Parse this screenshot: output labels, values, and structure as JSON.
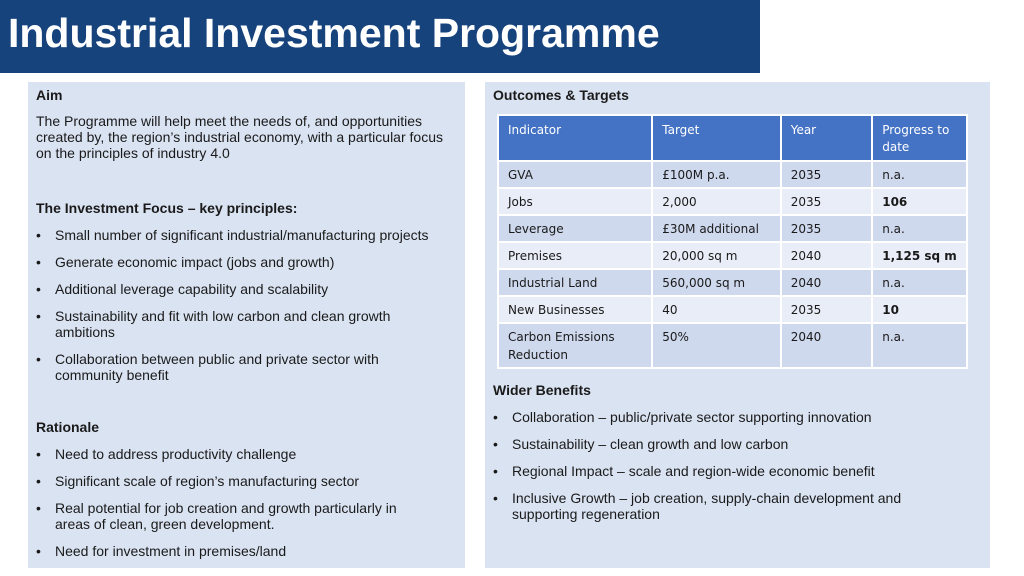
{
  "title": "Industrial Investment Programme",
  "left": {
    "aim_heading": "Aim",
    "aim_text": "The Programme will help meet the needs of, and opportunities created by, the region’s industrial economy, with a particular focus on the principles of industry 4.0",
    "focus_heading": "The Investment Focus – key principles:",
    "focus_items": [
      "Small number of significant industrial/manufacturing projects",
      "Generate economic impact (jobs and growth)",
      "Additional leverage capability and scalability",
      "Sustainability and fit with low carbon and clean growth ambitions",
      "Collaboration between public and private sector with community benefit"
    ],
    "rationale_heading": "Rationale",
    "rationale_items": [
      "Need to address productivity challenge",
      "Significant scale of region’s manufacturing sector",
      "Real potential for job creation and growth particularly in areas of clean, green development.",
      "Need for investment in premises/land"
    ]
  },
  "right": {
    "outcomes_heading": "Outcomes & Targets",
    "table": {
      "headers": [
        "Indicator",
        "Target",
        "Year",
        "Progress to date"
      ],
      "rows": [
        {
          "indicator": "GVA",
          "target": "£100M p.a.",
          "year": "2035",
          "progress": "n.a.",
          "progress_bold": false
        },
        {
          "indicator": "Jobs",
          "target": "2,000",
          "year": "2035",
          "progress": "106",
          "progress_bold": true
        },
        {
          "indicator": "Leverage",
          "target": "£30M additional",
          "year": "2035",
          "progress": "n.a.",
          "progress_bold": false
        },
        {
          "indicator": "Premises",
          "target": "20,000 sq m",
          "year": "2040",
          "progress": "1,125 sq m",
          "progress_bold": true
        },
        {
          "indicator": "Industrial Land",
          "target": "560,000 sq m",
          "year": "2040",
          "progress": "n.a.",
          "progress_bold": false
        },
        {
          "indicator": "New Businesses",
          "target": "40",
          "year": "2035",
          "progress": "10",
          "progress_bold": true
        },
        {
          "indicator": "Carbon Emissions Reduction",
          "target": "50%",
          "year": "2040",
          "progress": "n.a.",
          "progress_bold": false
        }
      ]
    },
    "wider_heading": "Wider Benefits",
    "wider_items": [
      "Collaboration – public/private sector supporting innovation",
      "Sustainability – clean growth and low carbon",
      "Regional Impact – scale and region-wide economic benefit",
      "Inclusive Growth – job creation, supply-chain development and supporting regeneration"
    ]
  }
}
